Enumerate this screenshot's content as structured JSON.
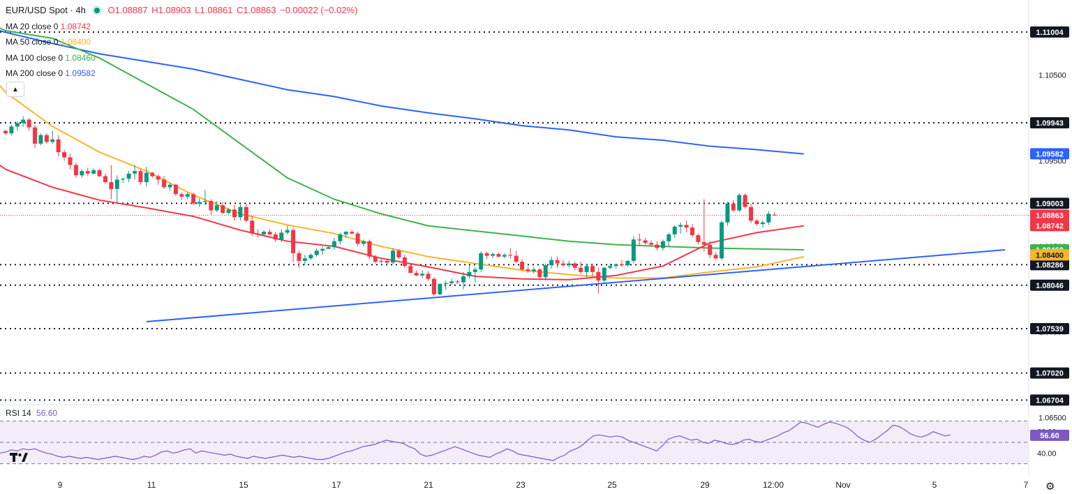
{
  "header": {
    "symbol": "EUR/USD Spot · 4h",
    "open": "O1.08887",
    "high": "H1.08903",
    "low": "L1.08861",
    "close": "C1.08863",
    "change": "−0.00022 (−0.02%)"
  },
  "ma_legend": [
    {
      "label": "MA 20 close 0",
      "value": "1.08742",
      "color": "#f23645"
    },
    {
      "label": "MA 50 close 0",
      "value": "1.08400",
      "color": "#f7b529"
    },
    {
      "label": "MA 100 close 0",
      "value": "1.08460",
      "color": "#3db24b"
    },
    {
      "label": "MA 200 close 0",
      "value": "1.09582",
      "color": "#2962ff"
    }
  ],
  "rsi_legend": {
    "label": "RSI 14",
    "value": "56.60"
  },
  "icons": {
    "collapse": "chevron-up-icon",
    "settings": "gear-icon",
    "logo": "tradingview-logo"
  },
  "chart_data": {
    "type": "candlestick",
    "title": "EUR/USD Spot · 4h",
    "x_ticks": [
      "9",
      "11",
      "15",
      "17",
      "21",
      "23",
      "25",
      "29",
      "12:00",
      "Nov",
      "5",
      "7"
    ],
    "y_ticks": [
      "1.10500",
      "1.09500",
      "1.08500",
      "1.07500",
      "1.06500"
    ],
    "y_range": [
      1.0665,
      1.1115
    ],
    "last_price": 1.08863,
    "levels": [
      1.11004,
      1.09943,
      1.09003,
      1.08286,
      1.08046,
      1.07539,
      1.0702,
      1.06704
    ],
    "level_labels": [
      "1.11004",
      "1.09943",
      "1.09003",
      "1.08286",
      "1.08046",
      "1.07539",
      "1.07020",
      "1.06704"
    ],
    "price_tags": [
      {
        "text": "1.08863",
        "value": 1.08863,
        "color": "#f23645"
      },
      {
        "text": "1.08742",
        "value": 1.08742,
        "color": "#f23645"
      },
      {
        "text": "1.08460",
        "value": 1.0846,
        "color": "#3db24b"
      },
      {
        "text": "1.08400",
        "value": 1.084,
        "color": "#f7b529"
      },
      {
        "text": "1.09582",
        "value": 1.09582,
        "color": "#2962ff"
      }
    ],
    "trendline": {
      "start": [
        24,
        1.0762
      ],
      "end": [
        139,
        1.0846
      ]
    },
    "ma_series": {
      "ma20": {
        "color": "#f23645",
        "points": [
          [
            0,
            1.094
          ],
          [
            8,
            1.0919
          ],
          [
            16,
            1.0904
          ],
          [
            24,
            1.0895
          ],
          [
            32,
            1.0885
          ],
          [
            40,
            1.0869
          ],
          [
            48,
            1.0856
          ],
          [
            56,
            1.085
          ],
          [
            64,
            1.0836
          ],
          [
            72,
            1.0826
          ],
          [
            80,
            1.0815
          ],
          [
            88,
            1.0812
          ],
          [
            96,
            1.0811
          ],
          [
            104,
            1.0816
          ],
          [
            112,
            1.0827
          ],
          [
            120,
            1.0854
          ],
          [
            128,
            1.0866
          ],
          [
            136,
            1.0874
          ]
        ]
      },
      "ma50": {
        "color": "#f7b529",
        "points": [
          [
            0,
            1.103
          ],
          [
            8,
            1.099
          ],
          [
            16,
            1.096
          ],
          [
            24,
            1.0938
          ],
          [
            32,
            1.091
          ],
          [
            40,
            1.0888
          ],
          [
            48,
            1.0875
          ],
          [
            56,
            1.0865
          ],
          [
            64,
            1.085
          ],
          [
            72,
            1.0838
          ],
          [
            80,
            1.083
          ],
          [
            88,
            1.0822
          ],
          [
            96,
            1.0817
          ],
          [
            104,
            1.0813
          ],
          [
            112,
            1.0813
          ],
          [
            120,
            1.082
          ],
          [
            128,
            1.0826
          ],
          [
            136,
            1.0838
          ]
        ]
      },
      "ma100": {
        "color": "#3db24b",
        "points": [
          [
            0,
            1.1102
          ],
          [
            8,
            1.1093
          ],
          [
            16,
            1.107
          ],
          [
            24,
            1.104
          ],
          [
            32,
            1.101
          ],
          [
            40,
            1.097
          ],
          [
            48,
            1.093
          ],
          [
            56,
            1.0905
          ],
          [
            64,
            1.0888
          ],
          [
            72,
            1.0874
          ],
          [
            80,
            1.0868
          ],
          [
            88,
            1.0862
          ],
          [
            96,
            1.0856
          ],
          [
            104,
            1.0852
          ],
          [
            112,
            1.085
          ],
          [
            120,
            1.0848
          ],
          [
            128,
            1.0847
          ],
          [
            136,
            1.0846
          ]
        ]
      },
      "ma200": {
        "color": "#2962ff",
        "points": [
          [
            0,
            1.11
          ],
          [
            8,
            1.1087
          ],
          [
            16,
            1.1075
          ],
          [
            24,
            1.1066
          ],
          [
            32,
            1.1057
          ],
          [
            40,
            1.1045
          ],
          [
            48,
            1.1033
          ],
          [
            56,
            1.1025
          ],
          [
            64,
            1.1014
          ],
          [
            72,
            1.1006
          ],
          [
            80,
            1.0999
          ],
          [
            88,
            1.0991
          ],
          [
            96,
            1.0986
          ],
          [
            104,
            1.0978
          ],
          [
            112,
            1.0974
          ],
          [
            120,
            1.0967
          ],
          [
            128,
            1.0963
          ],
          [
            136,
            1.0958
          ]
        ]
      }
    },
    "candles_ohlc": [
      [
        1.0985,
        1.0986,
        1.098,
        1.0982
      ],
      [
        1.0982,
        1.0992,
        1.098,
        1.099
      ],
      [
        1.099,
        1.0996,
        1.0985,
        1.0994
      ],
      [
        1.0994,
        1.1002,
        1.099,
        1.0998
      ],
      [
        1.0998,
        1.1,
        1.0985,
        1.0989
      ],
      [
        1.0989,
        1.0992,
        1.0965,
        1.097
      ],
      [
        1.097,
        1.0982,
        1.0968,
        1.098
      ],
      [
        1.098,
        1.0982,
        1.097,
        1.0972
      ],
      [
        1.0972,
        1.0985,
        1.097,
        1.0975
      ],
      [
        1.0975,
        1.098,
        1.0955,
        1.096
      ],
      [
        1.096,
        1.0963,
        1.095,
        1.0954
      ],
      [
        1.0954,
        1.0958,
        1.094,
        1.0945
      ],
      [
        1.0945,
        1.0948,
        1.093,
        1.0933
      ],
      [
        1.0933,
        1.094,
        1.093,
        1.0938
      ],
      [
        1.0938,
        1.0942,
        1.0932,
        1.0935
      ],
      [
        1.0935,
        1.0941,
        1.0934,
        1.0939
      ],
      [
        1.0939,
        1.094,
        1.0931,
        1.0932
      ],
      [
        1.0932,
        1.0935,
        1.0923,
        1.0925
      ],
      [
        1.0925,
        1.0945,
        1.0905,
        1.0917
      ],
      [
        1.0917,
        1.0933,
        1.09,
        1.0928
      ],
      [
        1.0928,
        1.093,
        1.0924,
        1.0929
      ],
      [
        1.0929,
        1.0938,
        1.0925,
        1.0935
      ],
      [
        1.0935,
        1.0945,
        1.0928,
        1.0938
      ],
      [
        1.0938,
        1.094,
        1.0922,
        1.0925
      ],
      [
        1.0925,
        1.0943,
        1.092,
        1.0936
      ],
      [
        1.0936,
        1.0937,
        1.093,
        1.0932
      ],
      [
        1.0932,
        1.0934,
        1.0922,
        1.0928
      ],
      [
        1.0928,
        1.0932,
        1.0917,
        1.0919
      ],
      [
        1.0919,
        1.0924,
        1.0915,
        1.0922
      ],
      [
        1.0922,
        1.0923,
        1.0909,
        1.0911
      ],
      [
        1.0911,
        1.0913,
        1.0904,
        1.0908
      ],
      [
        1.0908,
        1.0913,
        1.0905,
        1.0911
      ],
      [
        1.0911,
        1.0913,
        1.0898,
        1.09
      ],
      [
        1.09,
        1.0906,
        1.0896,
        1.0902
      ],
      [
        1.0902,
        1.0916,
        1.0898,
        1.0903
      ],
      [
        1.0903,
        1.0905,
        1.0887,
        1.0892
      ],
      [
        1.0892,
        1.0903,
        1.089,
        1.0898
      ],
      [
        1.0898,
        1.0902,
        1.0888,
        1.0889
      ],
      [
        1.0889,
        1.0895,
        1.0887,
        1.0893
      ],
      [
        1.0893,
        1.0898,
        1.088,
        1.0884
      ],
      [
        1.0884,
        1.0899,
        1.088,
        1.0896
      ],
      [
        1.0896,
        1.09,
        1.0878,
        1.088
      ],
      [
        1.088,
        1.0886,
        1.0862,
        1.0865
      ],
      [
        1.0865,
        1.087,
        1.086,
        1.0864
      ],
      [
        1.0864,
        1.0869,
        1.0862,
        1.0867
      ],
      [
        1.0867,
        1.087,
        1.0863,
        1.0864
      ],
      [
        1.0864,
        1.0867,
        1.0855,
        1.0858
      ],
      [
        1.0858,
        1.087,
        1.0855,
        1.0866
      ],
      [
        1.0866,
        1.0874,
        1.0864,
        1.0869
      ],
      [
        1.0869,
        1.0872,
        1.0832,
        1.0842
      ],
      [
        1.0842,
        1.0845,
        1.0825,
        1.0833
      ],
      [
        1.0833,
        1.084,
        1.0828,
        1.0836
      ],
      [
        1.0836,
        1.0842,
        1.0834,
        1.084
      ],
      [
        1.084,
        1.0848,
        1.0838,
        1.0845
      ],
      [
        1.0845,
        1.085,
        1.084,
        1.0847
      ],
      [
        1.0847,
        1.085,
        1.0848,
        1.0849
      ],
      [
        1.0849,
        1.086,
        1.0846,
        1.0856
      ],
      [
        1.0856,
        1.0866,
        1.0852,
        1.0864
      ],
      [
        1.0864,
        1.0868,
        1.086,
        1.0867
      ],
      [
        1.0867,
        1.0869,
        1.0864,
        1.0865
      ],
      [
        1.0865,
        1.0867,
        1.085,
        1.0853
      ],
      [
        1.0853,
        1.0858,
        1.085,
        1.0856
      ],
      [
        1.0856,
        1.0858,
        1.0835,
        1.0838
      ],
      [
        1.0838,
        1.084,
        1.083,
        1.0832
      ],
      [
        1.0832,
        1.0835,
        1.083,
        1.0833
      ],
      [
        1.0833,
        1.0836,
        1.0829,
        1.0831
      ],
      [
        1.0831,
        1.0848,
        1.0829,
        1.0845
      ],
      [
        1.0845,
        1.0847,
        1.0835,
        1.0837
      ],
      [
        1.0837,
        1.084,
        1.0825,
        1.0827
      ],
      [
        1.0827,
        1.083,
        1.0818,
        1.0819
      ],
      [
        1.0819,
        1.0822,
        1.0815,
        1.0816
      ],
      [
        1.0816,
        1.0822,
        1.0813,
        1.0818
      ],
      [
        1.0818,
        1.0821,
        1.081,
        1.0812
      ],
      [
        1.0812,
        1.0814,
        1.0792,
        1.0794
      ],
      [
        1.0794,
        1.0807,
        1.0793,
        1.0806
      ],
      [
        1.0806,
        1.081,
        1.0799,
        1.0807
      ],
      [
        1.0807,
        1.0812,
        1.0805,
        1.0809
      ],
      [
        1.0809,
        1.0811,
        1.0806,
        1.0808
      ],
      [
        1.0808,
        1.082,
        1.08,
        1.0815
      ],
      [
        1.0815,
        1.0828,
        1.0812,
        1.082
      ],
      [
        1.082,
        1.0826,
        1.0808,
        1.0823
      ],
      [
        1.0823,
        1.0844,
        1.082,
        1.0842
      ],
      [
        1.0842,
        1.0844,
        1.0835,
        1.0839
      ],
      [
        1.0839,
        1.0843,
        1.0836,
        1.0841
      ],
      [
        1.0841,
        1.0843,
        1.0837,
        1.0838
      ],
      [
        1.0838,
        1.0842,
        1.0836,
        1.084
      ],
      [
        1.084,
        1.0848,
        1.0836,
        1.0839
      ],
      [
        1.0839,
        1.0845,
        1.083,
        1.0832
      ],
      [
        1.0832,
        1.0835,
        1.0821,
        1.0823
      ],
      [
        1.0823,
        1.0826,
        1.0819,
        1.0821
      ],
      [
        1.0821,
        1.0826,
        1.0818,
        1.0823
      ],
      [
        1.0823,
        1.0825,
        1.0812,
        1.0814
      ],
      [
        1.0814,
        1.083,
        1.081,
        1.0828
      ],
      [
        1.0828,
        1.0838,
        1.0824,
        1.0834
      ],
      [
        1.0834,
        1.0838,
        1.0825,
        1.083
      ],
      [
        1.083,
        1.0834,
        1.0826,
        1.0828
      ],
      [
        1.0828,
        1.0833,
        1.0825,
        1.083
      ],
      [
        1.083,
        1.0832,
        1.0822,
        1.0825
      ],
      [
        1.0825,
        1.0832,
        1.0818,
        1.082
      ],
      [
        1.082,
        1.083,
        1.0814,
        1.0827
      ],
      [
        1.0827,
        1.083,
        1.0815,
        1.082
      ],
      [
        1.082,
        1.0825,
        1.0795,
        1.081
      ],
      [
        1.081,
        1.0826,
        1.0806,
        1.0825
      ],
      [
        1.0825,
        1.083,
        1.0823,
        1.0827
      ],
      [
        1.0827,
        1.083,
        1.0824,
        1.0829
      ],
      [
        1.0829,
        1.0834,
        1.0826,
        1.0828
      ],
      [
        1.0828,
        1.0834,
        1.0826,
        1.0833
      ],
      [
        1.0833,
        1.0862,
        1.083,
        1.0858
      ],
      [
        1.0858,
        1.0865,
        1.085,
        1.0857
      ],
      [
        1.0857,
        1.086,
        1.0852,
        1.0854
      ],
      [
        1.0854,
        1.0857,
        1.085,
        1.0852
      ],
      [
        1.0852,
        1.0856,
        1.0845,
        1.0848
      ],
      [
        1.0848,
        1.0858,
        1.0845,
        1.0856
      ],
      [
        1.0856,
        1.0866,
        1.085,
        1.0864
      ],
      [
        1.0864,
        1.0875,
        1.086,
        1.0873
      ],
      [
        1.0873,
        1.0878,
        1.0865,
        1.0875
      ],
      [
        1.0875,
        1.088,
        1.0866,
        1.0872
      ],
      [
        1.0872,
        1.0876,
        1.086,
        1.0863
      ],
      [
        1.0863,
        1.0865,
        1.0852,
        1.0855
      ],
      [
        1.0855,
        1.0905,
        1.0844,
        1.0852
      ],
      [
        1.0852,
        1.0856,
        1.0836,
        1.084
      ],
      [
        1.084,
        1.0843,
        1.0834,
        1.0836
      ],
      [
        1.0836,
        1.088,
        1.0834,
        1.0878
      ],
      [
        1.0878,
        1.0902,
        1.0874,
        1.09
      ],
      [
        1.09,
        1.0904,
        1.089,
        1.0892
      ],
      [
        1.0892,
        1.0912,
        1.089,
        1.091
      ],
      [
        1.091,
        1.0912,
        1.0894,
        1.0896
      ],
      [
        1.0896,
        1.09,
        1.0877,
        1.088
      ],
      [
        1.088,
        1.0882,
        1.0874,
        1.0876
      ],
      [
        1.0876,
        1.088,
        1.0872,
        1.0878
      ],
      [
        1.0878,
        1.0891,
        1.0875,
        1.0888
      ],
      [
        1.0887,
        1.089,
        1.0886,
        1.0886
      ]
    ],
    "rsi": {
      "ylim": [
        20,
        80
      ],
      "bands": [
        30,
        50,
        70
      ],
      "tick_labels": [
        "60.00",
        "40.00"
      ],
      "current_text": "56.60",
      "values": [
        40,
        41,
        43,
        42,
        44,
        43,
        44,
        42,
        40,
        39,
        37,
        36,
        37,
        36,
        35,
        36,
        35,
        34,
        35,
        36,
        37,
        36,
        35,
        34,
        35,
        37,
        36,
        38,
        41,
        42,
        40,
        41,
        43,
        44,
        40,
        42,
        41,
        40,
        39,
        38,
        39,
        37,
        36,
        35,
        37,
        36,
        35,
        36,
        37,
        38,
        37,
        36,
        37,
        36,
        35,
        34,
        34,
        35,
        37,
        39,
        41,
        42,
        44,
        46,
        47,
        48,
        50,
        52,
        51,
        50,
        49,
        46,
        44,
        39,
        37,
        38,
        40,
        42,
        44,
        46,
        44,
        42,
        40,
        38,
        37,
        36,
        39,
        41,
        44,
        42,
        39,
        38,
        37,
        36,
        35,
        34,
        33,
        36,
        38,
        42,
        44,
        47,
        52,
        56,
        57,
        56,
        55,
        56,
        55,
        52,
        50,
        48,
        46,
        44,
        42,
        47,
        53,
        55,
        56,
        54,
        52,
        53,
        50,
        49,
        52,
        51,
        49,
        48,
        49,
        52,
        53,
        51,
        50,
        52,
        54,
        56,
        59,
        61,
        65,
        69,
        68,
        66,
        64,
        67,
        69,
        68,
        66,
        64,
        60,
        55,
        52,
        50,
        53,
        57,
        61,
        66,
        65,
        62,
        58,
        56,
        55,
        57,
        60,
        58,
        56,
        57
      ]
    }
  }
}
